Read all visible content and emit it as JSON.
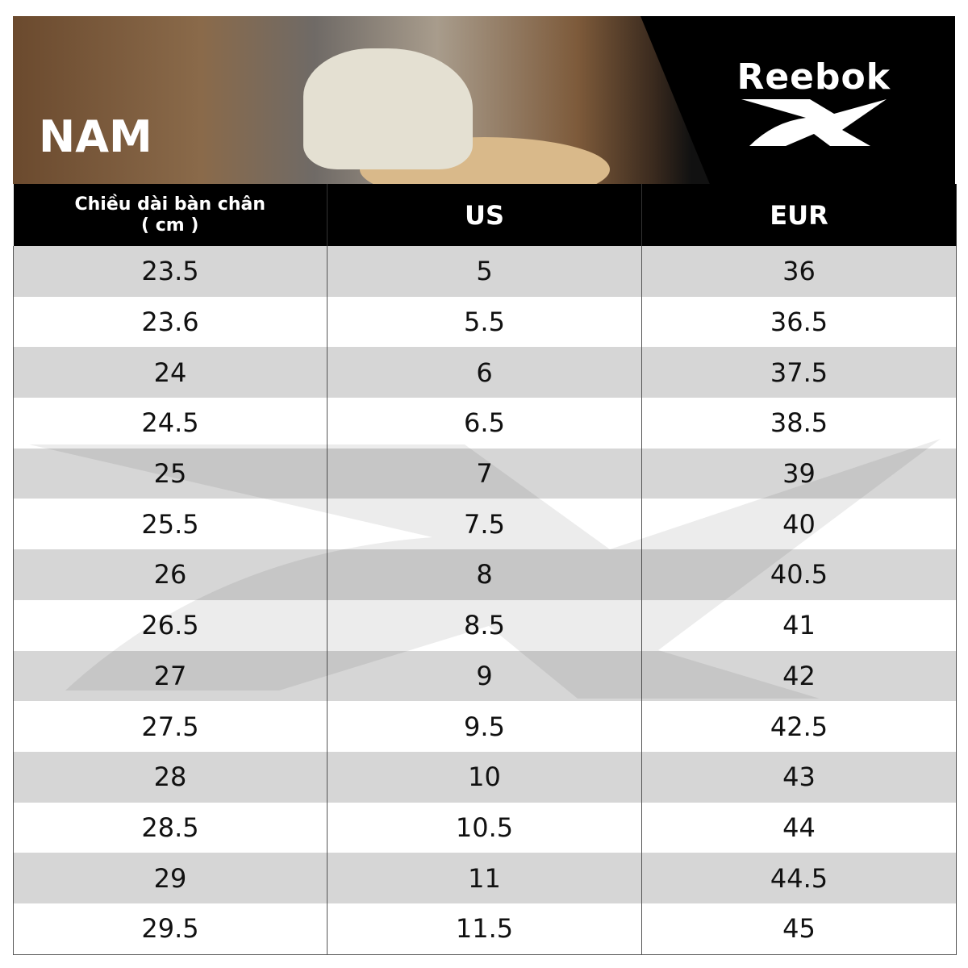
{
  "banner": {
    "title": "NAM",
    "brand": "Reebok"
  },
  "table": {
    "headers": [
      "Chiều dài bàn chân",
      "US",
      "EUR"
    ],
    "header_sub": "( cm )",
    "rows": [
      [
        "23.5",
        "5",
        "36"
      ],
      [
        "23.6",
        "5.5",
        "36.5"
      ],
      [
        "24",
        "6",
        "37.5"
      ],
      [
        "24.5",
        "6.5",
        "38.5"
      ],
      [
        "25",
        "7",
        "39"
      ],
      [
        "25.5",
        "7.5",
        "40"
      ],
      [
        "26",
        "8",
        "40.5"
      ],
      [
        "26.5",
        "8.5",
        "41"
      ],
      [
        "27",
        "9",
        "42"
      ],
      [
        "27.5",
        "9.5",
        "42.5"
      ],
      [
        "28",
        "10",
        "43"
      ],
      [
        "28.5",
        "10.5",
        "44"
      ],
      [
        "29",
        "11",
        "44.5"
      ],
      [
        "29.5",
        "11.5",
        "45"
      ]
    ]
  },
  "colors": {
    "header_bg": "#000000",
    "row_alt": "#d6d6d6",
    "row": "#ffffff"
  }
}
